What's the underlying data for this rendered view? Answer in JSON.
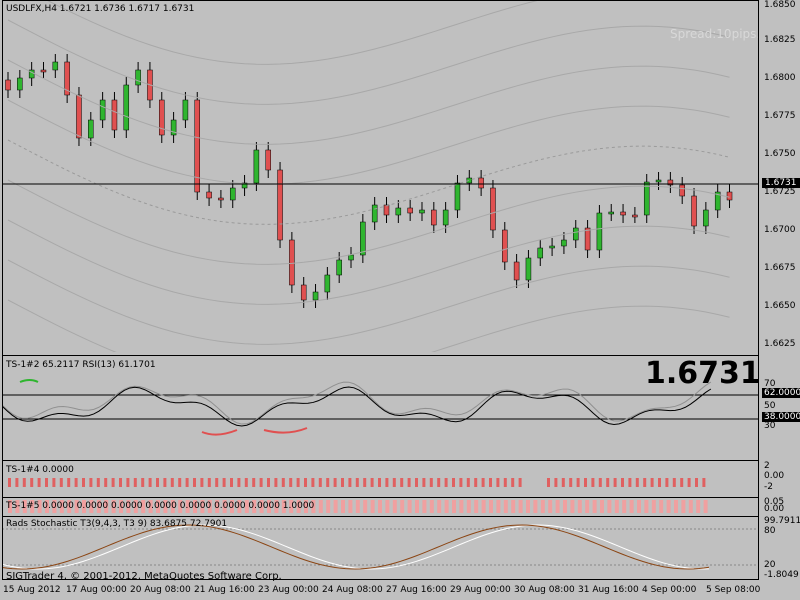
{
  "main": {
    "symbol_line": "USDLFX,H4  1.6721 1.6736 1.6717 1.6731",
    "spread": "Spread:10pips.",
    "price_badge": "1.6731",
    "y_ticks": [
      "1.6850",
      "1.6825",
      "1.6800",
      "1.6775",
      "1.6750",
      "1.6725",
      "1.6700",
      "1.6675",
      "1.6650",
      "1.6625"
    ]
  },
  "rsi": {
    "title": "TS-1#2 65.2117  RSI(13) 61.1701",
    "big_price": "1.6731",
    "ticks": [
      "70",
      "50",
      "30"
    ],
    "badge_high": "62.0000",
    "badge_low": "38.0000"
  },
  "ts4": {
    "title": "TS-1#4 0.0000",
    "ticks": [
      "2",
      "0.00",
      "-2"
    ]
  },
  "ts5": {
    "title": "TS-1#5 0.0000 0.0000 0.0000 0.0000 0.0000 0.0000 0.0000 1.0000",
    "ticks": [
      "0.05",
      "0.00"
    ]
  },
  "stoch": {
    "title": "Rads Stochastic T3(9,4,3, T3 9) 83.6875 72.7901",
    "ticks": [
      "99.7911",
      "80",
      "20",
      "-1.8049"
    ]
  },
  "footer": {
    "copyright": "SIGTrader 4, © 2001-2012, MetaQuotes Software Corp."
  },
  "x_axis": [
    "15 Aug 2012",
    "17 Aug 00:00",
    "20 Aug 08:00",
    "21 Aug 16:00",
    "23 Aug 00:00",
    "24 Aug 08:00",
    "27 Aug 16:00",
    "29 Aug 00:00",
    "30 Aug 08:00",
    "31 Aug 16:00",
    "4 Sep 00:00",
    "5 Sep 08:00"
  ],
  "colors": {
    "bull": "#2fb52f",
    "bear": "#e05050",
    "background": "#c0c0c0",
    "grid": "#a8a8a8"
  }
}
